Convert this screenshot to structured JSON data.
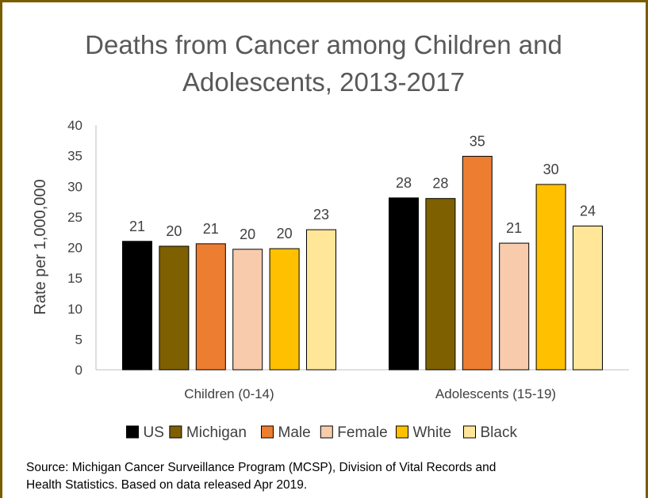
{
  "chart_data": {
    "type": "bar",
    "title_lines": [
      "Deaths from Cancer among Children and",
      "Adolescents, 2013-2017"
    ],
    "ylabel": "Rate per 1,000,000",
    "xlabel": "",
    "ylim": [
      0,
      40
    ],
    "yticks": [
      "0",
      "5",
      "10",
      "15",
      "20",
      "25",
      "30",
      "35",
      "40"
    ],
    "categories": [
      "Children (0-14)",
      "Adolescents (15-19)"
    ],
    "series": [
      {
        "name": "US",
        "color": "#000000",
        "values": [
          21.0,
          28.1
        ],
        "labels": [
          "21",
          "28"
        ]
      },
      {
        "name": "Michigan",
        "color": "#7f6000",
        "values": [
          20.2,
          28.0
        ],
        "labels": [
          "20",
          "28"
        ]
      },
      {
        "name": "Male",
        "color": "#ed7d31",
        "values": [
          20.6,
          34.9
        ],
        "labels": [
          "21",
          "35"
        ]
      },
      {
        "name": "Female",
        "color": "#f8cbad",
        "values": [
          19.7,
          20.7
        ],
        "labels": [
          "20",
          "21"
        ]
      },
      {
        "name": "White",
        "color": "#ffc000",
        "values": [
          19.8,
          30.3
        ],
        "labels": [
          "20",
          "30"
        ]
      },
      {
        "name": "Black",
        "color": "#ffe699",
        "values": [
          22.9,
          23.5
        ],
        "labels": [
          "23",
          "24"
        ]
      }
    ],
    "legend_position": "bottom",
    "grid": false
  },
  "source_lines": [
    "Source: Michigan Cancer Surveillance Program (MCSP), Division of Vital Records and",
    "Health Statistics. Based on data released Apr 2019."
  ]
}
